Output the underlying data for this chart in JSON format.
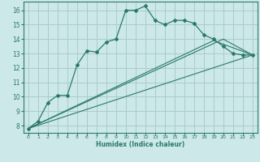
{
  "xlabel": "Humidex (Indice chaleur)",
  "bg_color": "#cce8e8",
  "grid_color": "#aacccc",
  "line_color": "#2a7a6a",
  "xlim": [
    -0.5,
    23.5
  ],
  "ylim": [
    7.5,
    16.6
  ],
  "xticks": [
    0,
    1,
    2,
    3,
    4,
    5,
    6,
    7,
    8,
    9,
    10,
    11,
    12,
    13,
    14,
    15,
    16,
    17,
    18,
    19,
    20,
    21,
    22,
    23
  ],
  "yticks": [
    8,
    9,
    10,
    11,
    12,
    13,
    14,
    15,
    16
  ],
  "line1_x": [
    0,
    1,
    2,
    3,
    4,
    5,
    6,
    7,
    8,
    9,
    10,
    11,
    12,
    13,
    14,
    15,
    16,
    17,
    18,
    19,
    20,
    21,
    22,
    23
  ],
  "line1_y": [
    7.8,
    8.3,
    9.6,
    10.1,
    10.1,
    12.2,
    13.2,
    13.1,
    13.8,
    14.0,
    16.0,
    16.0,
    16.3,
    15.3,
    15.0,
    15.3,
    15.3,
    15.1,
    14.3,
    14.0,
    13.5,
    13.0,
    12.9,
    12.9
  ],
  "line2_x": [
    0,
    23
  ],
  "line2_y": [
    7.8,
    12.9
  ],
  "line3_x": [
    0,
    20,
    23
  ],
  "line3_y": [
    7.8,
    14.0,
    12.9
  ],
  "line4_x": [
    0,
    19,
    23
  ],
  "line4_y": [
    7.8,
    13.9,
    12.9
  ]
}
